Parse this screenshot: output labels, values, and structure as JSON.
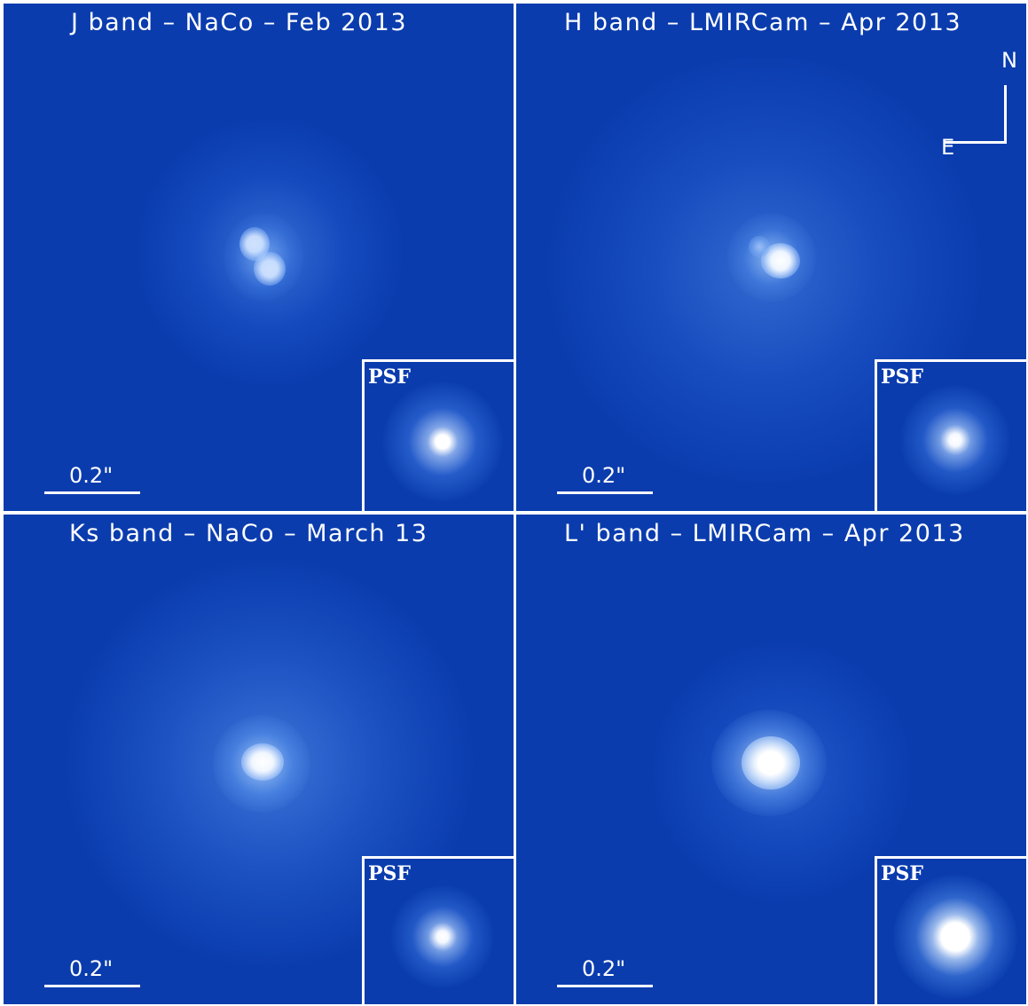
{
  "panels": [
    {
      "title": "J band – NaCo – Feb 2013",
      "scale": "0.2\"",
      "psf": "PSF"
    },
    {
      "title": "H band – LMIRCam – Apr 2013",
      "scale": "0.2\"",
      "psf": "PSF"
    },
    {
      "title": "Ks band – NaCo – March 13",
      "scale": "0.2\"",
      "psf": "PSF"
    },
    {
      "title": "L' band – LMIRCam – Apr 2013",
      "scale": "0.2\"",
      "psf": "PSF"
    }
  ],
  "compass": {
    "north": "N",
    "east": "E"
  },
  "colors": {
    "background": "#0a3cae",
    "glow": "#ffffff",
    "frame": "#ffffff"
  }
}
